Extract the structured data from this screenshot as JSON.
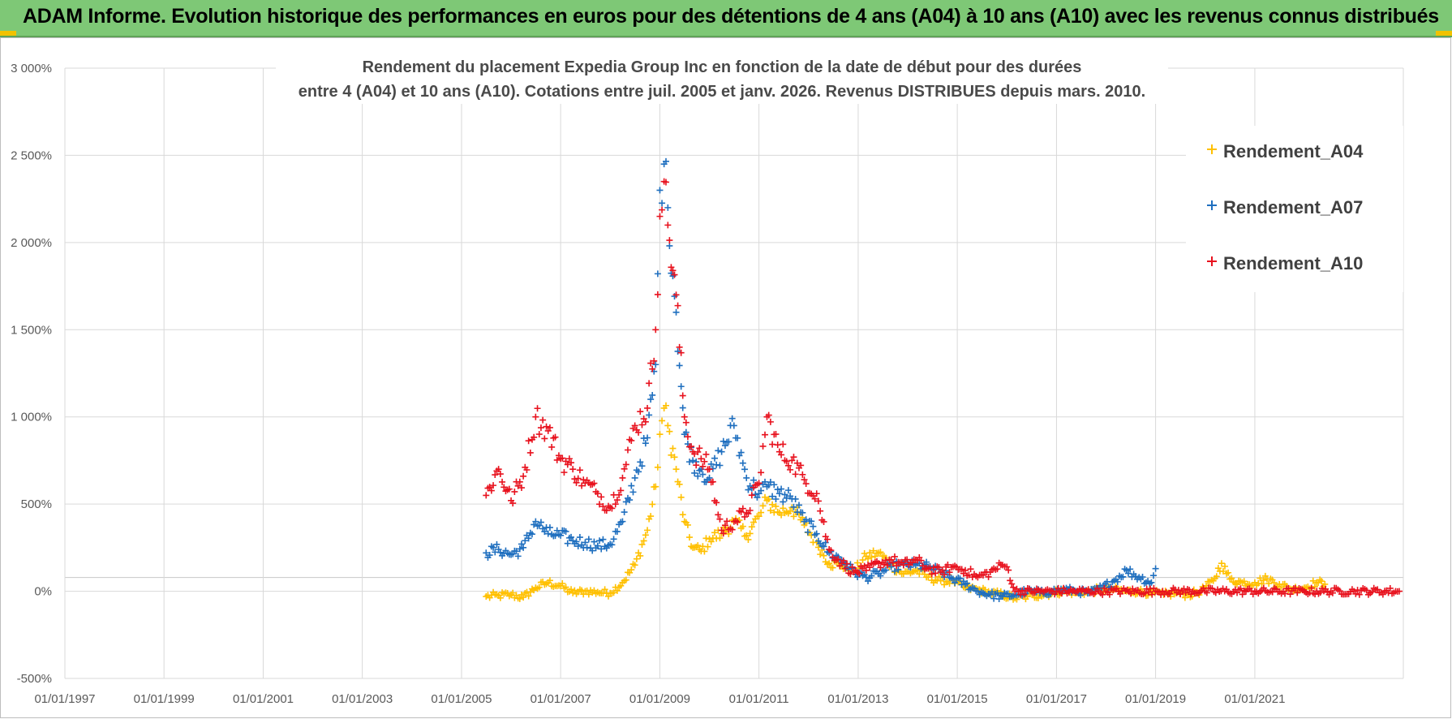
{
  "banner": {
    "title": "ADAM Informe. Evolution historique des performances en euros pour des détentions de 4 ans (A04) à 10 ans (A10) avec les revenus connus distribués"
  },
  "colors": {
    "banner_bg": "#7ec876",
    "a04": "#ffc000",
    "a07": "#1f6fbf",
    "a10": "#e8121e",
    "grid": "#d9d9d9"
  },
  "chart_data": {
    "type": "scatter",
    "title_line1": "Rendement du placement Expedia Group Inc en fonction de la date de début pour des durées",
    "title_line2": "entre 4 (A04) et 10 ans (A10). Cotations entre juil. 2005 et janv. 2026. Revenus DISTRIBUES depuis mars. 2010.",
    "xlabel": "",
    "ylabel": "",
    "xlim": [
      "1997-01-01",
      "2023-12-31"
    ],
    "ylim": [
      -500,
      3000
    ],
    "x_tick_labels": [
      "01/01/1997",
      "01/01/1999",
      "01/01/2001",
      "01/01/2003",
      "01/01/2005",
      "01/01/2007",
      "01/01/2009",
      "01/01/2011",
      "01/01/2013",
      "01/01/2015",
      "01/01/2017",
      "01/01/2019",
      "01/01/2021"
    ],
    "y_tick_labels": [
      "3 000%",
      "2 500%",
      "2 000%",
      "1 500%",
      "1 000%",
      "500%",
      "0%",
      "-500%"
    ],
    "y_tick_values": [
      3000,
      2500,
      2000,
      1500,
      1000,
      500,
      0,
      -500
    ],
    "grid": true,
    "legend_position": "top-right",
    "series": [
      {
        "name": "Rendement_A04",
        "color": "#ffc000",
        "points": [
          [
            "2005-07-01",
            -30
          ],
          [
            "2005-10-01",
            -25
          ],
          [
            "2006-01-01",
            -20
          ],
          [
            "2006-04-01",
            -35
          ],
          [
            "2006-07-01",
            20
          ],
          [
            "2006-10-01",
            50
          ],
          [
            "2007-01-01",
            30
          ],
          [
            "2007-04-01",
            -10
          ],
          [
            "2007-07-01",
            0
          ],
          [
            "2007-10-01",
            -5
          ],
          [
            "2008-01-01",
            -10
          ],
          [
            "2008-04-01",
            50
          ],
          [
            "2008-07-01",
            150
          ],
          [
            "2008-10-01",
            350
          ],
          [
            "2008-12-01",
            600
          ],
          [
            "2009-01-01",
            900
          ],
          [
            "2009-02-01",
            1050
          ],
          [
            "2009-03-01",
            950
          ],
          [
            "2009-05-01",
            700
          ],
          [
            "2009-07-01",
            400
          ],
          [
            "2009-09-01",
            250
          ],
          [
            "2009-11-01",
            230
          ],
          [
            "2010-01-01",
            300
          ],
          [
            "2010-04-01",
            330
          ],
          [
            "2010-07-01",
            400
          ],
          [
            "2010-10-01",
            320
          ],
          [
            "2011-01-01",
            430
          ],
          [
            "2011-03-01",
            520
          ],
          [
            "2011-06-01",
            450
          ],
          [
            "2011-09-01",
            480
          ],
          [
            "2011-12-01",
            380
          ],
          [
            "2012-03-01",
            280
          ],
          [
            "2012-06-01",
            160
          ],
          [
            "2012-09-01",
            150
          ],
          [
            "2012-12-01",
            110
          ],
          [
            "2013-03-01",
            200
          ],
          [
            "2013-06-01",
            220
          ],
          [
            "2013-09-01",
            150
          ],
          [
            "2013-12-01",
            100
          ],
          [
            "2014-03-01",
            120
          ],
          [
            "2014-06-01",
            80
          ],
          [
            "2014-09-01",
            60
          ],
          [
            "2014-12-01",
            60
          ],
          [
            "2015-03-01",
            20
          ],
          [
            "2015-06-01",
            10
          ],
          [
            "2015-09-01",
            -10
          ],
          [
            "2015-12-01",
            -20
          ],
          [
            "2016-03-01",
            -40
          ],
          [
            "2016-06-01",
            -30
          ],
          [
            "2016-09-01",
            -20
          ],
          [
            "2016-12-01",
            -10
          ],
          [
            "2017-03-01",
            0
          ],
          [
            "2017-06-01",
            -10
          ],
          [
            "2017-09-01",
            0
          ],
          [
            "2017-12-01",
            10
          ],
          [
            "2018-03-01",
            10
          ],
          [
            "2018-06-01",
            0
          ],
          [
            "2018-09-01",
            0
          ],
          [
            "2018-12-01",
            -10
          ],
          [
            "2019-03-01",
            -20
          ],
          [
            "2019-06-01",
            -10
          ],
          [
            "2019-09-01",
            -20
          ],
          [
            "2019-12-01",
            0
          ],
          [
            "2020-03-01",
            60
          ],
          [
            "2020-05-01",
            160
          ],
          [
            "2020-07-01",
            70
          ],
          [
            "2020-10-01",
            50
          ],
          [
            "2021-01-01",
            50
          ],
          [
            "2021-04-01",
            70
          ],
          [
            "2021-07-01",
            40
          ],
          [
            "2021-10-01",
            10
          ],
          [
            "2022-01-01",
            20
          ],
          [
            "2022-04-01",
            50
          ],
          [
            "2022-06-01",
            40
          ]
        ]
      },
      {
        "name": "Rendement_A07",
        "color": "#1f6fbf",
        "points": [
          [
            "2005-07-01",
            220
          ],
          [
            "2005-10-01",
            240
          ],
          [
            "2006-01-01",
            210
          ],
          [
            "2006-04-01",
            250
          ],
          [
            "2006-07-01",
            400
          ],
          [
            "2006-10-01",
            330
          ],
          [
            "2007-01-01",
            320
          ],
          [
            "2007-04-01",
            290
          ],
          [
            "2007-07-01",
            280
          ],
          [
            "2007-10-01",
            260
          ],
          [
            "2008-01-01",
            270
          ],
          [
            "2008-04-01",
            400
          ],
          [
            "2008-07-01",
            650
          ],
          [
            "2008-10-01",
            880
          ],
          [
            "2008-12-01",
            1300
          ],
          [
            "2009-01-01",
            2300
          ],
          [
            "2009-02-01",
            2450
          ],
          [
            "2009-03-01",
            2200
          ],
          [
            "2009-05-01",
            1600
          ],
          [
            "2009-07-01",
            900
          ],
          [
            "2009-09-01",
            750
          ],
          [
            "2009-11-01",
            700
          ],
          [
            "2010-01-01",
            650
          ],
          [
            "2010-04-01",
            800
          ],
          [
            "2010-07-01",
            950
          ],
          [
            "2010-10-01",
            650
          ],
          [
            "2011-01-01",
            560
          ],
          [
            "2011-03-01",
            600
          ],
          [
            "2011-06-01",
            560
          ],
          [
            "2011-09-01",
            530
          ],
          [
            "2011-12-01",
            400
          ],
          [
            "2012-03-01",
            330
          ],
          [
            "2012-06-01",
            220
          ],
          [
            "2012-09-01",
            180
          ],
          [
            "2012-12-01",
            110
          ],
          [
            "2013-03-01",
            80
          ],
          [
            "2013-06-01",
            100
          ],
          [
            "2013-09-01",
            140
          ],
          [
            "2013-12-01",
            150
          ],
          [
            "2014-03-01",
            150
          ],
          [
            "2014-06-01",
            140
          ],
          [
            "2014-09-01",
            110
          ],
          [
            "2014-12-01",
            70
          ],
          [
            "2015-03-01",
            40
          ],
          [
            "2015-06-01",
            0
          ],
          [
            "2015-09-01",
            -20
          ],
          [
            "2015-12-01",
            -30
          ],
          [
            "2016-03-01",
            -20
          ],
          [
            "2016-06-01",
            0
          ],
          [
            "2016-09-01",
            -10
          ],
          [
            "2016-12-01",
            0
          ],
          [
            "2017-03-01",
            10
          ],
          [
            "2017-06-01",
            0
          ],
          [
            "2017-09-01",
            -10
          ],
          [
            "2017-12-01",
            20
          ],
          [
            "2018-03-01",
            60
          ],
          [
            "2018-06-01",
            120
          ],
          [
            "2018-09-01",
            80
          ],
          [
            "2018-12-01",
            50
          ],
          [
            "2019-01-01",
            130
          ]
        ]
      },
      {
        "name": "Rendement_A10",
        "color": "#e8121e",
        "points": [
          [
            "2005-07-01",
            550
          ],
          [
            "2005-10-01",
            700
          ],
          [
            "2006-01-01",
            520
          ],
          [
            "2006-04-01",
            660
          ],
          [
            "2006-07-01",
            1000
          ],
          [
            "2006-10-01",
            920
          ],
          [
            "2007-01-01",
            760
          ],
          [
            "2007-04-01",
            700
          ],
          [
            "2007-07-01",
            620
          ],
          [
            "2007-10-01",
            560
          ],
          [
            "2008-01-01",
            480
          ],
          [
            "2008-04-01",
            650
          ],
          [
            "2008-07-01",
            950
          ],
          [
            "2008-10-01",
            1050
          ],
          [
            "2008-12-01",
            1500
          ],
          [
            "2009-01-01",
            2150
          ],
          [
            "2009-02-01",
            2350
          ],
          [
            "2009-03-01",
            2100
          ],
          [
            "2009-05-01",
            1700
          ],
          [
            "2009-07-01",
            1000
          ],
          [
            "2009-09-01",
            800
          ],
          [
            "2009-11-01",
            760
          ],
          [
            "2010-01-01",
            700
          ],
          [
            "2010-04-01",
            350
          ],
          [
            "2010-07-01",
            400
          ],
          [
            "2010-10-01",
            450
          ],
          [
            "2011-01-01",
            620
          ],
          [
            "2011-03-01",
            1000
          ],
          [
            "2011-06-01",
            800
          ],
          [
            "2011-09-01",
            750
          ],
          [
            "2011-12-01",
            640
          ],
          [
            "2012-03-01",
            560
          ],
          [
            "2012-06-01",
            240
          ],
          [
            "2012-09-01",
            160
          ],
          [
            "2012-12-01",
            110
          ],
          [
            "2013-03-01",
            120
          ],
          [
            "2013-06-01",
            160
          ],
          [
            "2013-09-01",
            180
          ],
          [
            "2013-12-01",
            150
          ],
          [
            "2014-03-01",
            180
          ],
          [
            "2014-06-01",
            130
          ],
          [
            "2014-09-01",
            110
          ],
          [
            "2014-12-01",
            140
          ],
          [
            "2015-03-01",
            120
          ],
          [
            "2015-06-01",
            80
          ],
          [
            "2015-09-01",
            110
          ],
          [
            "2015-12-01",
            150
          ],
          [
            "2016-01-01",
            140
          ],
          [
            "2016-03-01",
            0
          ],
          [
            "2017-01-01",
            0
          ],
          [
            "2018-01-01",
            0
          ],
          [
            "2019-01-01",
            0
          ],
          [
            "2020-01-01",
            0
          ],
          [
            "2021-01-01",
            0
          ],
          [
            "2022-01-01",
            0
          ],
          [
            "2023-01-01",
            0
          ],
          [
            "2023-12-01",
            0
          ]
        ]
      }
    ]
  }
}
